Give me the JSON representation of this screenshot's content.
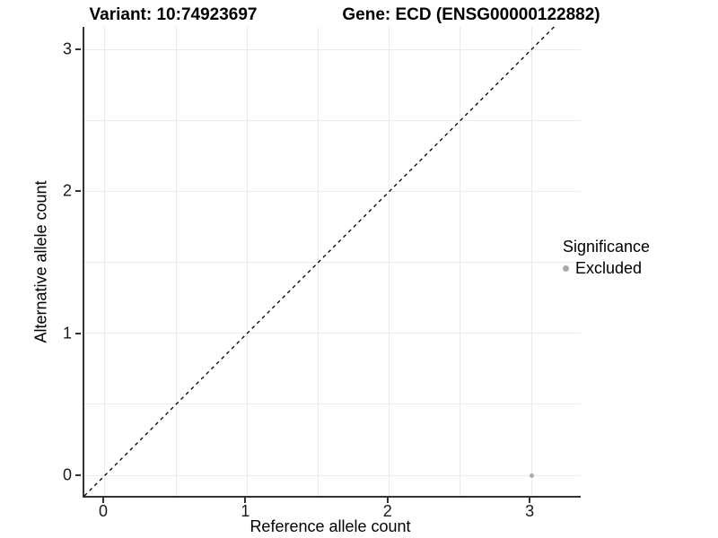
{
  "chart_data": {
    "type": "scatter",
    "title_left": "Variant: 10:74923697",
    "title_right": "Gene: ECD (ENSG00000122882)",
    "xlabel": "Reference allele count",
    "ylabel": "Alternative allele count",
    "x_ticks": [
      0,
      1,
      2,
      3
    ],
    "y_ticks": [
      0,
      1,
      2,
      3
    ],
    "x_minor_ticks": [
      0.5,
      1.5,
      2.5
    ],
    "y_minor_ticks": [
      0.5,
      1.5,
      2.5
    ],
    "x_range": [
      -0.145,
      3.346
    ],
    "y_range": [
      -0.145,
      3.159
    ],
    "grid": true,
    "grid_color": "#ebebeb",
    "axis_color": "#333333",
    "points": [
      {
        "x": 3,
        "y": 0,
        "series": "Excluded",
        "color": "#aaaaaa",
        "radius": 2.5
      }
    ],
    "reference_line": {
      "type": "identity",
      "slope": 1,
      "intercept": 0,
      "style": "dashed",
      "color": "#000000"
    },
    "legend": {
      "title": "Significance",
      "position": "right",
      "items": [
        {
          "label": "Excluded",
          "color": "#aaaaaa"
        }
      ]
    }
  }
}
